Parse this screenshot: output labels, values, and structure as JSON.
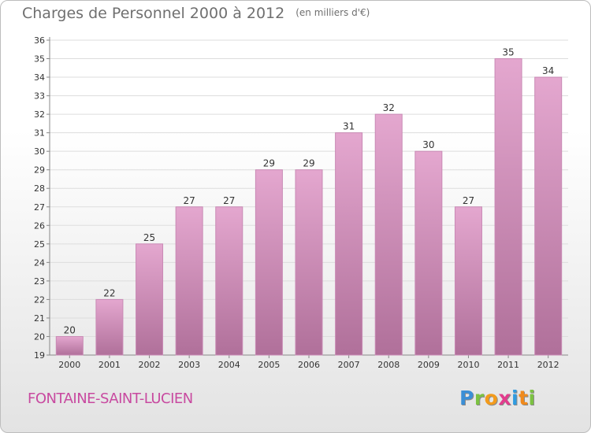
{
  "title": "Charges de Personnel 2000 à 2012",
  "subtitle": "(en milliers d'€)",
  "commune": "FONTAINE-SAINT-LUCIEN",
  "logo": {
    "letters": [
      {
        "ch": "P",
        "color": "#3b8fd6"
      },
      {
        "ch": "r",
        "color": "#7cc242"
      },
      {
        "ch": "o",
        "color": "#f39b1c"
      },
      {
        "ch": "x",
        "color": "#e23c8d"
      },
      {
        "ch": "i",
        "color": "#2f9be0"
      },
      {
        "ch": "t",
        "color": "#f08a1c"
      },
      {
        "ch": "i",
        "color": "#7cc242"
      }
    ]
  },
  "colors": {
    "bar_top": "#e4a7cf",
    "bar_bottom": "#b0709a",
    "bar_edge": "#c98ab5"
  },
  "chart_data": {
    "type": "bar",
    "categories": [
      "2000",
      "2001",
      "2002",
      "2003",
      "2004",
      "2005",
      "2006",
      "2007",
      "2008",
      "2009",
      "2010",
      "2011",
      "2012"
    ],
    "values": [
      20,
      22,
      25,
      27,
      27,
      29,
      29,
      31,
      32,
      30,
      27,
      35,
      34
    ],
    "ylim": [
      19,
      36
    ],
    "yticks": [
      19,
      20,
      21,
      22,
      23,
      24,
      25,
      26,
      27,
      28,
      29,
      30,
      31,
      32,
      33,
      34,
      35,
      36
    ],
    "grid": true,
    "xlabel": "",
    "ylabel": ""
  }
}
